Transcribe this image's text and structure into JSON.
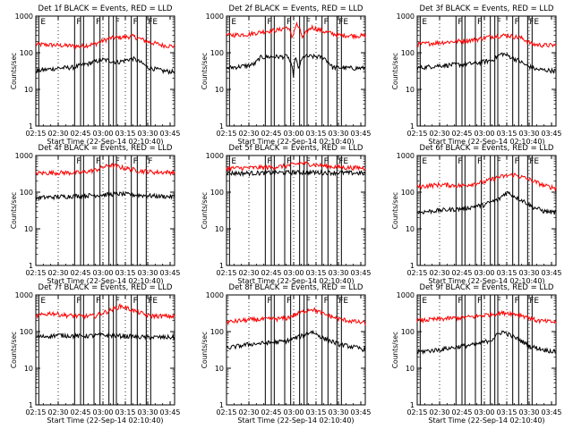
{
  "chart_data": [
    {
      "type": "line",
      "title": "Det 1f BLACK = Events, RED = LLD",
      "xlabel": "Start Time (22-Sep-14 02:10:40)",
      "ylabel": "Counts/sec",
      "yscale": "log",
      "ylim": [
        1,
        1000
      ],
      "xticks": [
        "02:15",
        "02:30",
        "02:45",
        "03:00",
        "03:15",
        "03:30",
        "03:45"
      ],
      "xlim_minutes": [
        15,
        108
      ],
      "yticks": [
        "1",
        "10",
        "100",
        "1000"
      ],
      "markers_minutes": [
        17,
        41,
        45,
        47,
        54,
        58,
        64,
        67,
        69,
        79,
        83,
        89,
        92
      ],
      "flags": [
        {
          "text": "E",
          "x": 17
        },
        {
          "text": "F",
          "x": 41
        },
        {
          "text": "F",
          "x": 54
        },
        {
          "text": "F",
          "x": 67
        },
        {
          "text": "F",
          "x": 79
        },
        {
          "text": "F",
          "x": 89
        },
        {
          "text": "E",
          "x": 92
        }
      ],
      "series": [
        {
          "color": "#ff0000",
          "x": [
            15,
            30,
            45,
            55,
            65,
            80,
            90,
            100,
            108
          ],
          "values": [
            170,
            160,
            150,
            175,
            250,
            280,
            200,
            160,
            150
          ]
        },
        {
          "color": "#000000",
          "x": [
            15,
            30,
            40,
            50,
            60,
            70,
            80,
            90,
            100,
            108
          ],
          "values": [
            32,
            38,
            40,
            50,
            65,
            55,
            70,
            40,
            32,
            30
          ]
        }
      ]
    },
    {
      "type": "line",
      "title": "Det 2f BLACK = Events, RED = LLD",
      "xlabel": "Start Time (22-Sep-14 02:10:40)",
      "ylabel": "Counts/sec",
      "yscale": "log",
      "ylim": [
        1,
        1000
      ],
      "xticks": [
        "02:15",
        "02:30",
        "02:45",
        "03:00",
        "03:15",
        "03:30",
        "03:45"
      ],
      "xlim_minutes": [
        15,
        108
      ],
      "yticks": [
        "1",
        "10",
        "100",
        "1000"
      ],
      "markers_minutes": [
        17,
        41,
        45,
        47,
        54,
        58,
        64,
        67,
        69,
        79,
        83,
        89,
        92
      ],
      "flags": [
        {
          "text": "E",
          "x": 17
        },
        {
          "text": "F",
          "x": 41
        },
        {
          "text": "F",
          "x": 54
        },
        {
          "text": "F",
          "x": 67
        },
        {
          "text": "F",
          "x": 79
        },
        {
          "text": "F",
          "x": 89
        },
        {
          "text": "E",
          "x": 92
        }
      ],
      "series": [
        {
          "color": "#ff0000",
          "x": [
            15,
            30,
            40,
            50,
            56,
            59,
            62,
            66,
            72,
            80,
            90,
            108
          ],
          "values": [
            300,
            320,
            380,
            420,
            500,
            250,
            600,
            250,
            500,
            380,
            300,
            290
          ]
        },
        {
          "color": "#000000",
          "x": [
            15,
            30,
            34,
            38,
            45,
            52,
            56,
            58,
            60,
            61,
            63,
            67,
            75,
            80,
            86,
            100,
            108
          ],
          "values": [
            38,
            45,
            50,
            75,
            78,
            78,
            80,
            50,
            22,
            80,
            35,
            80,
            78,
            75,
            40,
            38,
            38
          ]
        }
      ]
    },
    {
      "type": "line",
      "title": "Det 3f BLACK = Events, RED = LLD",
      "xlabel": "Start Time (22-Sep-14 02:10:40)",
      "ylabel": "Counts/sec",
      "yscale": "log",
      "ylim": [
        1,
        1000
      ],
      "xticks": [
        "02:15",
        "02:30",
        "02:45",
        "03:00",
        "03:15",
        "03:30",
        "03:45"
      ],
      "xlim_minutes": [
        15,
        108
      ],
      "yticks": [
        "1",
        "10",
        "100",
        "1000"
      ],
      "markers_minutes": [
        17,
        41,
        45,
        47,
        54,
        58,
        64,
        67,
        69,
        79,
        83,
        89,
        92
      ],
      "flags": [
        {
          "text": "E",
          "x": 17
        },
        {
          "text": "F",
          "x": 41
        },
        {
          "text": "F",
          "x": 54
        },
        {
          "text": "F",
          "x": 67
        },
        {
          "text": "F",
          "x": 79
        },
        {
          "text": "F",
          "x": 89
        },
        {
          "text": "E",
          "x": 92
        }
      ],
      "series": [
        {
          "color": "#ff0000",
          "x": [
            15,
            30,
            45,
            55,
            65,
            75,
            85,
            92,
            100,
            108
          ],
          "values": [
            170,
            190,
            210,
            230,
            280,
            300,
            250,
            170,
            160,
            160
          ]
        },
        {
          "color": "#000000",
          "x": [
            15,
            30,
            45,
            55,
            65,
            72,
            80,
            88,
            95,
            108
          ],
          "values": [
            38,
            45,
            48,
            52,
            62,
            95,
            70,
            45,
            35,
            32
          ]
        }
      ]
    },
    {
      "type": "line",
      "title": "Det 4f BLACK = Events, RED = LLD",
      "xlabel": "Start Time (22-Sep-14 02:10:40)",
      "ylabel": "Counts/sec",
      "yscale": "log",
      "ylim": [
        1,
        1000
      ],
      "xticks": [
        "02:15",
        "02:30",
        "02:45",
        "03:00",
        "03:15",
        "03:30",
        "03:45"
      ],
      "xlim_minutes": [
        15,
        108
      ],
      "yticks": [
        "1",
        "10",
        "100",
        "1000"
      ],
      "markers_minutes": [
        41,
        45,
        47,
        54,
        58,
        64,
        67,
        69,
        79,
        83,
        89
      ],
      "flags": [
        {
          "text": "F",
          "x": 41
        },
        {
          "text": "F",
          "x": 54
        },
        {
          "text": "F",
          "x": 67
        },
        {
          "text": "F",
          "x": 79
        },
        {
          "text": "F",
          "x": 89
        }
      ],
      "series": [
        {
          "color": "#ff0000",
          "x": [
            15,
            30,
            45,
            55,
            65,
            75,
            85,
            95,
            108
          ],
          "values": [
            330,
            340,
            340,
            400,
            550,
            450,
            380,
            350,
            350
          ]
        },
        {
          "color": "#000000",
          "x": [
            15,
            30,
            45,
            60,
            70,
            80,
            90,
            108
          ],
          "values": [
            70,
            75,
            80,
            85,
            90,
            85,
            80,
            75
          ]
        }
      ]
    },
    {
      "type": "line",
      "title": "Det 5f BLACK = Events, RED = LLD",
      "xlabel": "Start Time (22-Sep-14 02:10:40)",
      "ylabel": "Counts/sec",
      "yscale": "log",
      "ylim": [
        1,
        1000
      ],
      "xticks": [
        "02:15",
        "02:30",
        "02:45",
        "03:00",
        "03:15",
        "03:30",
        "03:45"
      ],
      "xlim_minutes": [
        15,
        108
      ],
      "yticks": [
        "1",
        "10",
        "100",
        "1000"
      ],
      "markers_minutes": [
        17,
        41,
        45,
        47,
        54,
        58,
        64,
        67,
        69,
        79,
        83,
        89,
        92
      ],
      "flags": [
        {
          "text": "E",
          "x": 17
        },
        {
          "text": "F",
          "x": 41
        },
        {
          "text": "F",
          "x": 54
        },
        {
          "text": "F",
          "x": 67
        },
        {
          "text": "F",
          "x": 79
        },
        {
          "text": "F",
          "x": 89
        },
        {
          "text": "E",
          "x": 92
        }
      ],
      "series": [
        {
          "color": "#ff0000",
          "x": [
            15,
            30,
            45,
            55,
            65,
            75,
            85,
            95,
            108
          ],
          "values": [
            450,
            460,
            480,
            520,
            620,
            560,
            500,
            470,
            460
          ]
        },
        {
          "color": "#000000",
          "x": [
            15,
            30,
            45,
            60,
            75,
            90,
            108
          ],
          "values": [
            330,
            330,
            340,
            345,
            345,
            340,
            330
          ]
        }
      ]
    },
    {
      "type": "line",
      "title": "Det 6f BLACK = Events, RED = LLD",
      "xlabel": "Start Time (22-Sep-14 02:10:40)",
      "ylabel": "Counts/sec",
      "yscale": "log",
      "ylim": [
        1,
        1000
      ],
      "xticks": [
        "02:15",
        "02:30",
        "02:45",
        "03:00",
        "03:15",
        "03:30",
        "03:45"
      ],
      "xlim_minutes": [
        15,
        108
      ],
      "yticks": [
        "1",
        "10",
        "100",
        "1000"
      ],
      "markers_minutes": [
        17,
        41,
        45,
        47,
        54,
        58,
        64,
        67,
        69,
        79,
        83,
        89,
        92
      ],
      "flags": [
        {
          "text": "E",
          "x": 17
        },
        {
          "text": "F",
          "x": 41
        },
        {
          "text": "F",
          "x": 54
        },
        {
          "text": "F",
          "x": 67
        },
        {
          "text": "F",
          "x": 79
        },
        {
          "text": "F",
          "x": 89
        },
        {
          "text": "E",
          "x": 92
        }
      ],
      "series": [
        {
          "color": "#ff0000",
          "x": [
            15,
            30,
            45,
            60,
            70,
            80,
            90,
            100,
            108
          ],
          "values": [
            140,
            160,
            150,
            190,
            260,
            300,
            220,
            150,
            130
          ]
        },
        {
          "color": "#000000",
          "x": [
            15,
            30,
            45,
            60,
            70,
            75,
            82,
            92,
            100,
            108
          ],
          "values": [
            28,
            32,
            35,
            45,
            65,
            100,
            70,
            40,
            30,
            28
          ]
        }
      ]
    },
    {
      "type": "line",
      "title": "Det 7f BLACK = Events, RED = LLD",
      "xlabel": "Start Time (22-Sep-14 02:10:40)",
      "ylabel": "Counts/sec",
      "yscale": "log",
      "ylim": [
        1,
        1000
      ],
      "xticks": [
        "02:15",
        "02:30",
        "02:45",
        "03:00",
        "03:15",
        "03:30",
        "03:45"
      ],
      "xlim_minutes": [
        15,
        108
      ],
      "yticks": [
        "1",
        "10",
        "100",
        "1000"
      ],
      "markers_minutes": [
        17,
        41,
        45,
        47,
        54,
        58,
        64,
        67,
        69,
        79,
        83,
        89,
        92
      ],
      "flags": [
        {
          "text": "E",
          "x": 17
        },
        {
          "text": "F",
          "x": 41
        },
        {
          "text": "F",
          "x": 54
        },
        {
          "text": "F",
          "x": 67
        },
        {
          "text": "F",
          "x": 79
        },
        {
          "text": "F",
          "x": 89
        },
        {
          "text": "E",
          "x": 92
        }
      ],
      "series": [
        {
          "color": "#ff0000",
          "x": [
            15,
            25,
            35,
            45,
            55,
            65,
            72,
            80,
            90,
            108
          ],
          "values": [
            260,
            320,
            280,
            260,
            270,
            380,
            500,
            380,
            270,
            260
          ]
        },
        {
          "color": "#000000",
          "x": [
            15,
            30,
            45,
            60,
            75,
            90,
            108
          ],
          "values": [
            70,
            80,
            75,
            80,
            75,
            70,
            70
          ]
        }
      ]
    },
    {
      "type": "line",
      "title": "Det 8f BLACK = Events, RED = LLD",
      "xlabel": "Start Time (22-Sep-14 02:10:40)",
      "ylabel": "Counts/sec",
      "yscale": "log",
      "ylim": [
        1,
        1000
      ],
      "xticks": [
        "02:15",
        "02:30",
        "02:45",
        "03:00",
        "03:15",
        "03:30",
        "03:45"
      ],
      "xlim_minutes": [
        15,
        108
      ],
      "yticks": [
        "1",
        "10",
        "100",
        "1000"
      ],
      "markers_minutes": [
        41,
        45,
        47,
        54,
        58,
        64,
        67,
        69,
        79,
        83,
        89,
        92
      ],
      "flags": [
        {
          "text": "F",
          "x": 41
        },
        {
          "text": "F",
          "x": 54
        },
        {
          "text": "F",
          "x": 67
        },
        {
          "text": "F",
          "x": 79
        },
        {
          "text": "F",
          "x": 89
        },
        {
          "text": "E",
          "x": 92
        }
      ],
      "series": [
        {
          "color": "#ff0000",
          "x": [
            15,
            30,
            45,
            55,
            65,
            72,
            80,
            90,
            100,
            108
          ],
          "values": [
            180,
            210,
            220,
            230,
            330,
            420,
            300,
            220,
            190,
            170
          ]
        },
        {
          "color": "#000000",
          "x": [
            15,
            30,
            45,
            55,
            65,
            72,
            80,
            90,
            100,
            108
          ],
          "values": [
            35,
            45,
            50,
            55,
            75,
            100,
            65,
            45,
            38,
            32
          ]
        }
      ]
    },
    {
      "type": "line",
      "title": "Det 9f BLACK = Events, RED = LLD",
      "xlabel": "Start Time (22-Sep-14 02:10:40)",
      "ylabel": "Counts/sec",
      "yscale": "log",
      "ylim": [
        1,
        1000
      ],
      "xticks": [
        "02:15",
        "02:30",
        "02:45",
        "03:00",
        "03:15",
        "03:30",
        "03:45"
      ],
      "xlim_minutes": [
        15,
        108
      ],
      "yticks": [
        "1",
        "10",
        "100",
        "1000"
      ],
      "markers_minutes": [
        17,
        41,
        45,
        47,
        54,
        58,
        64,
        67,
        69,
        79,
        83,
        89,
        92
      ],
      "flags": [
        {
          "text": "E",
          "x": 17
        },
        {
          "text": "F",
          "x": 41
        },
        {
          "text": "F",
          "x": 54
        },
        {
          "text": "F",
          "x": 67
        },
        {
          "text": "F",
          "x": 79
        },
        {
          "text": "F",
          "x": 89
        },
        {
          "text": "E",
          "x": 92
        }
      ],
      "series": [
        {
          "color": "#ff0000",
          "x": [
            15,
            30,
            45,
            55,
            65,
            75,
            85,
            95,
            108
          ],
          "values": [
            200,
            220,
            240,
            260,
            300,
            330,
            280,
            200,
            180
          ]
        },
        {
          "color": "#000000",
          "x": [
            15,
            30,
            45,
            55,
            65,
            72,
            80,
            90,
            100,
            108
          ],
          "values": [
            28,
            32,
            40,
            45,
            60,
            100,
            70,
            40,
            32,
            28
          ]
        }
      ]
    }
  ]
}
